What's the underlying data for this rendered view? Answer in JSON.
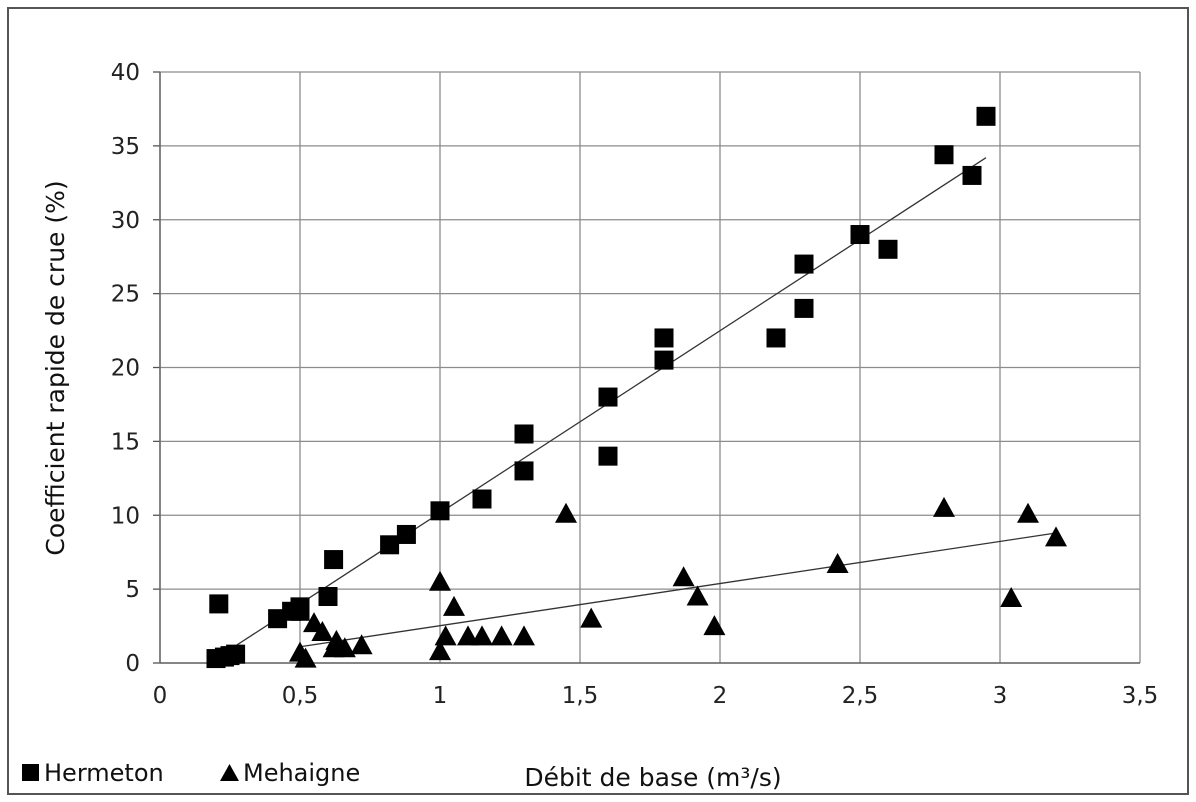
{
  "chart_data": {
    "type": "scatter",
    "xlabel": "Débit de base (m³/s)",
    "ylabel": "Coefficient rapide de crue (%)",
    "xlim": [
      0,
      3.5
    ],
    "ylim": [
      0,
      40
    ],
    "x_ticks": [
      "0",
      "0,5",
      "1",
      "1,5",
      "2",
      "2,5",
      "3",
      "3,5"
    ],
    "y_ticks": [
      "0",
      "5",
      "10",
      "15",
      "20",
      "25",
      "30",
      "35",
      "40"
    ],
    "grid": true,
    "legend_position": "bottom-left",
    "series": [
      {
        "name": "Hermeton",
        "marker": "square",
        "color": "#000000",
        "points": [
          [
            0.2,
            0.3
          ],
          [
            0.21,
            4.0
          ],
          [
            0.23,
            0.4
          ],
          [
            0.25,
            0.5
          ],
          [
            0.27,
            0.6
          ],
          [
            0.42,
            3.0
          ],
          [
            0.47,
            3.5
          ],
          [
            0.5,
            3.8
          ],
          [
            0.5,
            3.5
          ],
          [
            0.6,
            4.5
          ],
          [
            0.62,
            7.0
          ],
          [
            0.82,
            8.0
          ],
          [
            0.88,
            8.7
          ],
          [
            1.0,
            10.3
          ],
          [
            1.15,
            11.1
          ],
          [
            1.3,
            15.5
          ],
          [
            1.3,
            13.0
          ],
          [
            1.6,
            18.0
          ],
          [
            1.6,
            14.0
          ],
          [
            1.8,
            22.0
          ],
          [
            1.8,
            20.5
          ],
          [
            2.2,
            22.0
          ],
          [
            2.3,
            27.0
          ],
          [
            2.3,
            24.0
          ],
          [
            2.5,
            29.0
          ],
          [
            2.6,
            28.0
          ],
          [
            2.8,
            34.4
          ],
          [
            2.9,
            33.0
          ],
          [
            2.95,
            37.0
          ]
        ],
        "trendline": [
          [
            0.2,
            0.3
          ],
          [
            2.95,
            34.2
          ]
        ]
      },
      {
        "name": "Mehaigne",
        "marker": "triangle",
        "color": "#000000",
        "points": [
          [
            0.5,
            0.7
          ],
          [
            0.52,
            0.3
          ],
          [
            0.55,
            2.7
          ],
          [
            0.58,
            2.1
          ],
          [
            0.62,
            1.0
          ],
          [
            0.63,
            1.5
          ],
          [
            0.66,
            1.0
          ],
          [
            0.72,
            1.2
          ],
          [
            1.0,
            0.8
          ],
          [
            1.0,
            5.5
          ],
          [
            1.02,
            1.8
          ],
          [
            1.05,
            3.8
          ],
          [
            1.1,
            1.8
          ],
          [
            1.15,
            1.8
          ],
          [
            1.22,
            1.8
          ],
          [
            1.3,
            1.8
          ],
          [
            1.45,
            10.1
          ],
          [
            1.54,
            3.0
          ],
          [
            1.87,
            5.8
          ],
          [
            1.92,
            4.5
          ],
          [
            1.98,
            2.5
          ],
          [
            2.42,
            6.7
          ],
          [
            2.8,
            10.5
          ],
          [
            3.04,
            4.4
          ],
          [
            3.1,
            10.1
          ],
          [
            3.2,
            8.5
          ]
        ],
        "trendline": [
          [
            0.5,
            1.1
          ],
          [
            3.2,
            8.8
          ]
        ]
      }
    ]
  }
}
